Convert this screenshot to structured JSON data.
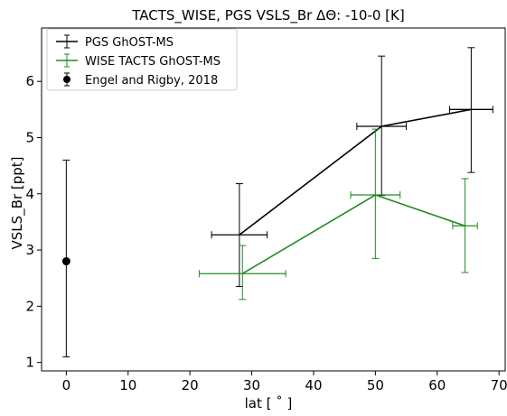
{
  "chart_data": {
    "type": "line",
    "title": "TACTS_WISE, PGS VSLS_Br ΔΘ: -10-0 [K]",
    "xlabel": "lat [ $^\\circ$ ]",
    "xlabel_display": "lat [ ˚ ]",
    "ylabel": "VSLS_Br [ppt]",
    "xlim": [
      -4,
      71
    ],
    "ylim": [
      0.85,
      6.95
    ],
    "xticks": [
      0,
      10,
      20,
      30,
      40,
      50,
      60,
      70
    ],
    "yticks": [
      1,
      2,
      3,
      4,
      5,
      6
    ],
    "grid": false,
    "legend_position": "top-left",
    "series": [
      {
        "name": "PGS GhOST-MS",
        "color": "#000000",
        "x": [
          28,
          51,
          65.5
        ],
        "y": [
          3.27,
          5.2,
          5.5
        ],
        "xerr": [
          4.5,
          4,
          3.5
        ],
        "yerr_low": [
          2.35,
          3.97,
          4.38
        ],
        "yerr_high": [
          4.18,
          6.45,
          6.6
        ]
      },
      {
        "name": "WISE TACTS GhOST-MS",
        "color": "#228B22",
        "x": [
          28.5,
          50,
          64.5
        ],
        "y": [
          2.58,
          3.98,
          3.43
        ],
        "xerr": [
          7,
          4,
          2
        ],
        "yerr_low": [
          2.12,
          2.85,
          2.6
        ],
        "yerr_high": [
          3.08,
          5.15,
          4.27
        ]
      },
      {
        "name": "Engel and Rigby, 2018",
        "color": "#000000",
        "marker": "o",
        "x": [
          0
        ],
        "y": [
          2.8
        ],
        "yerr_low": [
          1.1
        ],
        "yerr_high": [
          4.6
        ]
      }
    ]
  }
}
